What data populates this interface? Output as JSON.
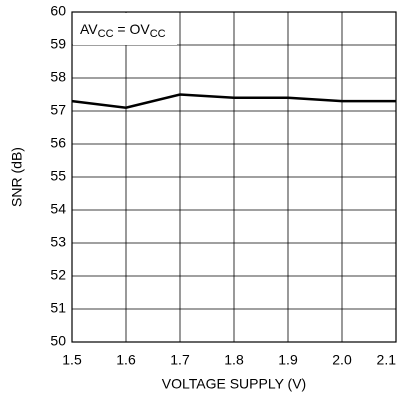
{
  "chart_data": {
    "type": "line",
    "x": [
      1.5,
      1.6,
      1.7,
      1.8,
      1.9,
      2.0,
      2.1
    ],
    "series": [
      {
        "color": "#000000",
        "values": [
          57.3,
          57.1,
          57.5,
          57.4,
          57.4,
          57.3,
          57.3
        ]
      }
    ],
    "xlim": [
      1.5,
      2.1
    ],
    "xticks": [
      1.5,
      1.6,
      1.7,
      1.8,
      1.9,
      {
        "value": 2.0,
        "label": "2.0"
      },
      2.1
    ],
    "ylim": [
      50,
      60
    ],
    "yticks": [
      50,
      51,
      52,
      53,
      54,
      55,
      56,
      57,
      58,
      59,
      60
    ],
    "xlabel": "VOLTAGE SUPPLY (V)",
    "ylabel": "SNR (dB)",
    "annotation": [
      "AV",
      "CC",
      " = OV",
      "CC"
    ],
    "grid": true
  }
}
